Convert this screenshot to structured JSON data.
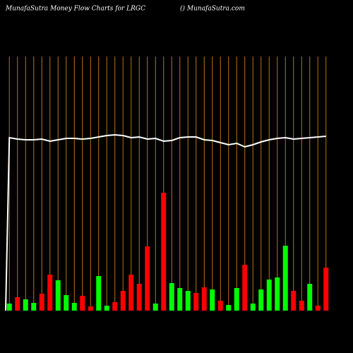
{
  "chart_data": {
    "type": "bar",
    "title": "MunafaSutra  Money Flow  Charts for LRGC",
    "subtitle": "() MunafaSutra.com",
    "categories": [
      null,
      null,
      null,
      null,
      null,
      null,
      null,
      null,
      null,
      null,
      null,
      null,
      null,
      null,
      null,
      null,
      null,
      null,
      null,
      null,
      null,
      null,
      null,
      null,
      null,
      null,
      null,
      null,
      null,
      null,
      null,
      null,
      null,
      null,
      null,
      null,
      null,
      null,
      null,
      null
    ],
    "values": [
      10,
      19,
      16,
      11,
      24,
      51,
      43,
      22,
      11,
      21,
      6,
      49,
      7,
      12,
      28,
      51,
      38,
      91,
      10,
      167,
      39,
      32,
      28,
      25,
      33,
      30,
      14,
      8,
      32,
      65,
      10,
      30,
      44,
      47,
      92,
      28,
      14,
      38,
      7,
      61
    ],
    "colors": [
      "#00ff00",
      "#ff0000",
      "#00ff00",
      "#00ff00",
      "#ff0000",
      "#ff0000",
      "#00ff00",
      "#00ff00",
      "#00ff00",
      "#ff0000",
      "#ff0000",
      "#00ff00",
      "#00ff00",
      "#ff0000",
      "#ff0000",
      "#ff0000",
      "#ff0000",
      "#ff0000",
      "#00ff00",
      "#ff0000",
      "#00ff00",
      "#00ff00",
      "#00ff00",
      "#ff0000",
      "#ff0000",
      "#00ff00",
      "#ff0000",
      "#00ff00",
      "#00ff00",
      "#ff0000",
      "#00ff00",
      "#00ff00",
      "#00ff00",
      "#00ff00",
      "#00ff00",
      "#ff0000",
      "#ff0000",
      "#00ff00",
      "#ff0000",
      "#ff0000"
    ],
    "line": {
      "color": "#ffffff",
      "values": [
        245,
        243,
        242,
        242,
        243,
        240,
        242,
        244,
        244,
        243,
        244,
        246,
        248,
        249,
        248,
        245,
        246,
        243,
        244,
        240,
        241,
        245,
        246,
        246,
        242,
        241,
        238,
        235,
        237,
        232,
        235,
        239,
        242,
        244,
        245,
        243,
        244,
        245,
        246,
        247
      ]
    },
    "ylim": [
      0,
      360
    ],
    "grid_color": "#b8741a"
  }
}
